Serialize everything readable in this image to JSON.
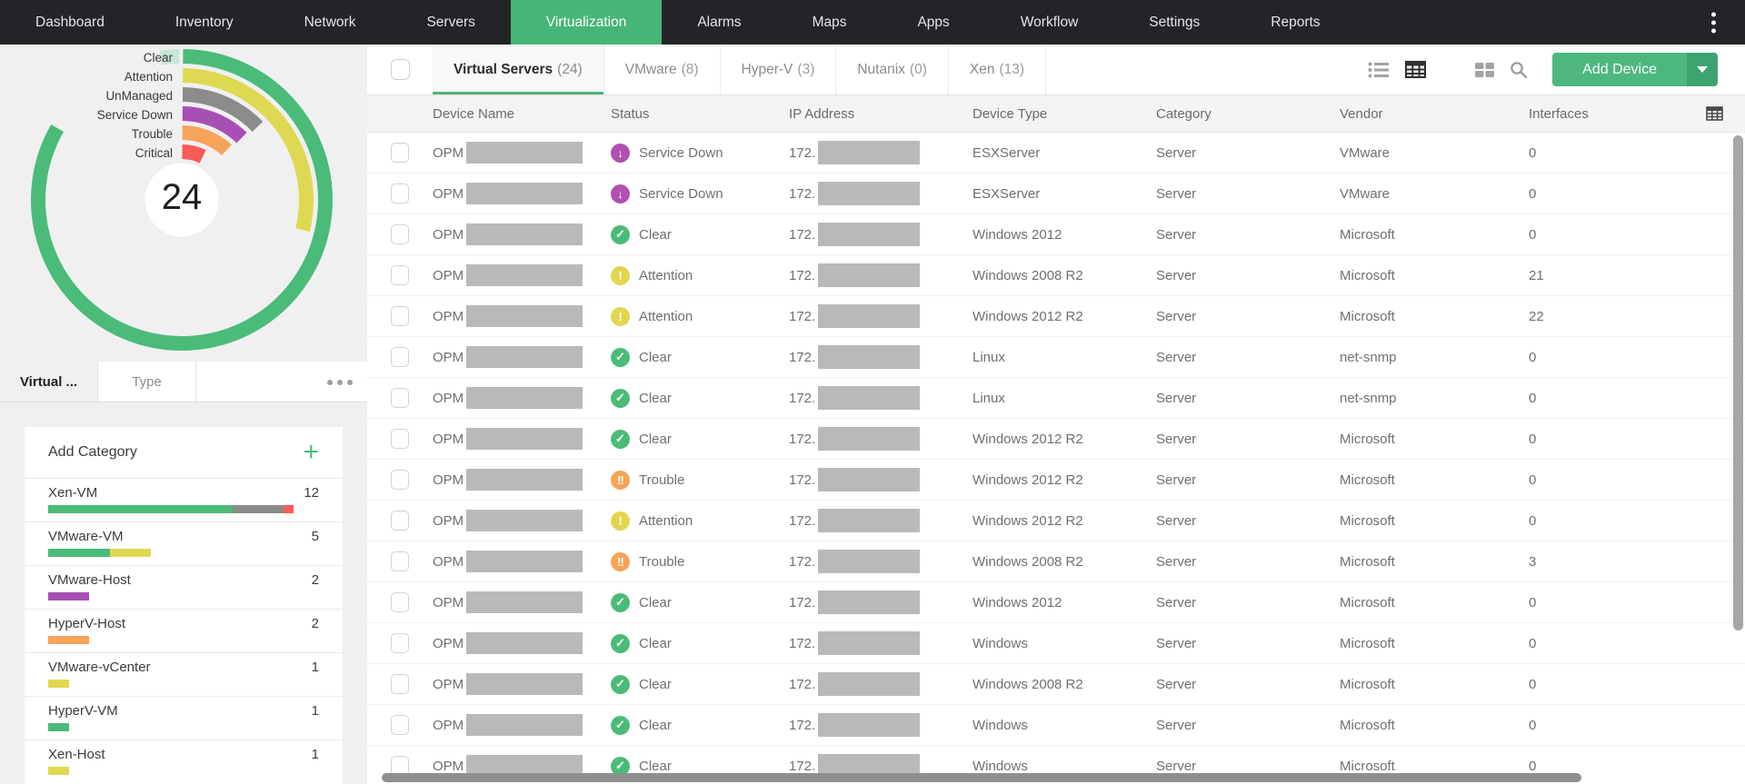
{
  "nav": {
    "items": [
      {
        "label": "Dashboard",
        "active": false
      },
      {
        "label": "Inventory",
        "active": false
      },
      {
        "label": "Network",
        "active": false
      },
      {
        "label": "Servers",
        "active": false
      },
      {
        "label": "Virtualization",
        "active": true
      },
      {
        "label": "Alarms",
        "active": false
      },
      {
        "label": "Maps",
        "active": false
      },
      {
        "label": "Apps",
        "active": false
      },
      {
        "label": "Workflow",
        "active": false
      },
      {
        "label": "Settings",
        "active": false
      },
      {
        "label": "Reports",
        "active": false
      }
    ]
  },
  "sidebar": {
    "status_chart": {
      "type": "radial-ring-gauge",
      "total": 24,
      "rings": [
        {
          "label": "Clear",
          "color": "#4bbb79",
          "sweep_deg": 300
        },
        {
          "label": "Attention",
          "color": "#dfd852",
          "sweep_deg": 104
        },
        {
          "label": "UnManaged",
          "color": "#8b8b8b",
          "sweep_deg": 46
        },
        {
          "label": "Service Down",
          "color": "#a84fb5",
          "sweep_deg": 44
        },
        {
          "label": "Trouble",
          "color": "#f7a45b",
          "sweep_deg": 42
        },
        {
          "label": "Critical",
          "color": "#fb5a5a",
          "sweep_deg": 26
        }
      ],
      "remainder_tick_color": "#c8e7d3"
    },
    "tabs": [
      {
        "label": "Virtual ...",
        "active": true
      },
      {
        "label": "Type",
        "active": false
      }
    ],
    "category_panel": {
      "add_label": "Add Category",
      "max_count": 12,
      "items": [
        {
          "name": "Xen-VM",
          "count": 12,
          "segments": [
            {
              "color": "#4bbb79",
              "pct": 75
            },
            {
              "color": "#8b8b8b",
              "pct": 21
            },
            {
              "color": "#fb5a5a",
              "pct": 4
            }
          ]
        },
        {
          "name": "VMware-VM",
          "count": 5,
          "segments": [
            {
              "color": "#4bbb79",
              "pct": 60
            },
            {
              "color": "#dfd852",
              "pct": 40
            }
          ]
        },
        {
          "name": "VMware-Host",
          "count": 2,
          "segments": [
            {
              "color": "#a84fb5",
              "pct": 100
            }
          ]
        },
        {
          "name": "HyperV-Host",
          "count": 2,
          "segments": [
            {
              "color": "#f7a45b",
              "pct": 100
            }
          ]
        },
        {
          "name": "VMware-vCenter",
          "count": 1,
          "segments": [
            {
              "color": "#dfd852",
              "pct": 100
            }
          ]
        },
        {
          "name": "HyperV-VM",
          "count": 1,
          "segments": [
            {
              "color": "#4bbb79",
              "pct": 100
            }
          ]
        },
        {
          "name": "Xen-Host",
          "count": 1,
          "segments": [
            {
              "color": "#dfd852",
              "pct": 100
            }
          ]
        }
      ]
    }
  },
  "main": {
    "tabs": [
      {
        "label": "Virtual Servers",
        "count": "(24)",
        "active": true
      },
      {
        "label": "VMware",
        "count": "(8)",
        "active": false
      },
      {
        "label": "Hyper-V",
        "count": "(3)",
        "active": false
      },
      {
        "label": "Nutanix",
        "count": "(0)",
        "active": false
      },
      {
        "label": "Xen",
        "count": "(13)",
        "active": false
      }
    ],
    "toolbar": {
      "add_device_label": "Add Device",
      "heatmap_icon_colors": [
        "#ef5350",
        "#4cba7d",
        "#e6c94c",
        "#4cba7d",
        "#f2a04d",
        "#4cba7d",
        "#9e9e9e",
        "#4cba7d",
        "#a84fb5"
      ]
    },
    "table": {
      "columns": [
        "Device Name",
        "Status",
        "IP Address",
        "Device Type",
        "Category",
        "Vendor",
        "Interfaces"
      ],
      "name_prefix": "OPM",
      "ip_prefix": "172.",
      "statuses": {
        "service-down": {
          "label": "Service Down",
          "color": "#b050b0",
          "glyph": "↓"
        },
        "clear": {
          "label": "Clear",
          "color": "#4bbb79",
          "glyph": "✓"
        },
        "attention": {
          "label": "Attention",
          "color": "#e2d64f",
          "glyph": "!"
        },
        "trouble": {
          "label": "Trouble",
          "color": "#f6a455",
          "glyph": "!!"
        }
      },
      "rows": [
        {
          "status": "service-down",
          "device_type": "ESXServer",
          "category": "Server",
          "vendor": "VMware",
          "interfaces": "0"
        },
        {
          "status": "service-down",
          "device_type": "ESXServer",
          "category": "Server",
          "vendor": "VMware",
          "interfaces": "0"
        },
        {
          "status": "clear",
          "device_type": "Windows 2012",
          "category": "Server",
          "vendor": "Microsoft",
          "interfaces": "0"
        },
        {
          "status": "attention",
          "device_type": "Windows 2008 R2",
          "category": "Server",
          "vendor": "Microsoft",
          "interfaces": "21"
        },
        {
          "status": "attention",
          "device_type": "Windows 2012 R2",
          "category": "Server",
          "vendor": "Microsoft",
          "interfaces": "22"
        },
        {
          "status": "clear",
          "device_type": "Linux",
          "category": "Server",
          "vendor": "net-snmp",
          "interfaces": "0"
        },
        {
          "status": "clear",
          "device_type": "Linux",
          "category": "Server",
          "vendor": "net-snmp",
          "interfaces": "0"
        },
        {
          "status": "clear",
          "device_type": "Windows 2012 R2",
          "category": "Server",
          "vendor": "Microsoft",
          "interfaces": "0"
        },
        {
          "status": "trouble",
          "device_type": "Windows 2012 R2",
          "category": "Server",
          "vendor": "Microsoft",
          "interfaces": "0"
        },
        {
          "status": "attention",
          "device_type": "Windows 2012 R2",
          "category": "Server",
          "vendor": "Microsoft",
          "interfaces": "0"
        },
        {
          "status": "trouble",
          "device_type": "Windows 2008 R2",
          "category": "Server",
          "vendor": "Microsoft",
          "interfaces": "3"
        },
        {
          "status": "clear",
          "device_type": "Windows 2012",
          "category": "Server",
          "vendor": "Microsoft",
          "interfaces": "0"
        },
        {
          "status": "clear",
          "device_type": "Windows",
          "category": "Server",
          "vendor": "Microsoft",
          "interfaces": "0"
        },
        {
          "status": "clear",
          "device_type": "Windows 2008 R2",
          "category": "Server",
          "vendor": "Microsoft",
          "interfaces": "0"
        },
        {
          "status": "clear",
          "device_type": "Windows",
          "category": "Server",
          "vendor": "Microsoft",
          "interfaces": "0"
        },
        {
          "status": "clear",
          "device_type": "Windows",
          "category": "Server",
          "vendor": "Microsoft",
          "interfaces": "0"
        }
      ]
    }
  }
}
